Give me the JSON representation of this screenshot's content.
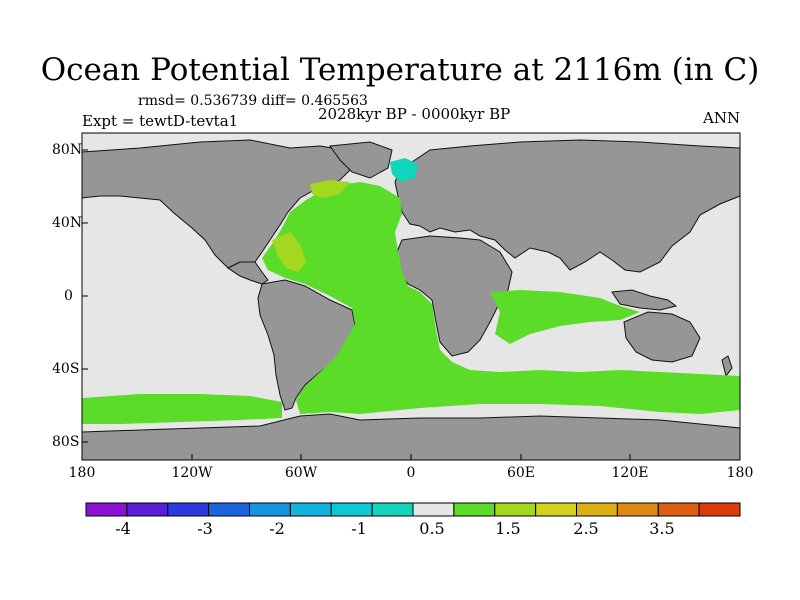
{
  "title": "Ocean Potential Temperature at 2116m (in C)",
  "stats": "rmsd= 0.536739 diff= 0.465563",
  "subtitle": "2028kyr BP - 0000kyr BP",
  "expt": "Expt = tewtD-tevta1",
  "season": "ANN",
  "lat_labels": [
    "80N",
    "40N",
    "0",
    "40S",
    "80S"
  ],
  "lon_labels": [
    "180",
    "120W",
    "60W",
    "0",
    "60E",
    "120E",
    "180"
  ],
  "colorbar": {
    "colors": [
      "#8c12d4",
      "#5a1ed6",
      "#2a3ade",
      "#1c64dc",
      "#1496de",
      "#12b4dc",
      "#10c8d4",
      "#12d6bc",
      "#e6e6e6",
      "#5adc28",
      "#a4d81e",
      "#d2d21c",
      "#dcb014",
      "#dc8c14",
      "#dc6010",
      "#dc3c0c"
    ],
    "labels": [
      "-4",
      "-3",
      "-2",
      "-1",
      "0.5",
      "1.5",
      "2.5",
      "3.5"
    ]
  },
  "colors": {
    "land": "#969696",
    "ocean_nodata": "#e6e6e6",
    "anomaly_main": "#5adc28",
    "anomaly_warm": "#a4d81e",
    "anomaly_cold": "#12d6bc"
  }
}
